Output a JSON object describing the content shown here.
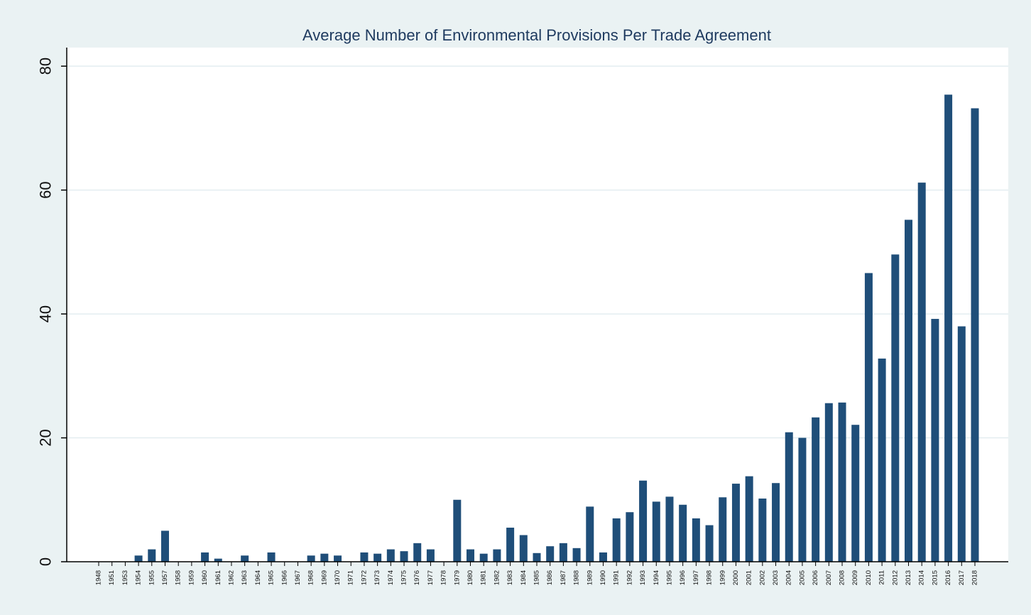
{
  "chart_data": {
    "type": "bar",
    "title": "Average Number of Environmental Provisions Per Trade Agreement",
    "xlabel": "",
    "ylabel": "",
    "ylim": [
      0,
      83
    ],
    "yticks": [
      0,
      20,
      40,
      60,
      80
    ],
    "grid": true,
    "legend": "none",
    "colors": {
      "bar": "#1f4e79",
      "background": "#eaf2f3",
      "plot": "#ffffff",
      "grid": "#e3edf0",
      "axis": "#000000"
    },
    "categories": [
      "1948",
      "1951",
      "1953",
      "1954",
      "1955",
      "1957",
      "1958",
      "1959",
      "1960",
      "1961",
      "1962",
      "1963",
      "1964",
      "1965",
      "1966",
      "1967",
      "1968",
      "1969",
      "1970",
      "1971",
      "1972",
      "1973",
      "1974",
      "1975",
      "1976",
      "1977",
      "1978",
      "1979",
      "1980",
      "1981",
      "1982",
      "1983",
      "1984",
      "1985",
      "1986",
      "1987",
      "1988",
      "1989",
      "1990",
      "1991",
      "1992",
      "1993",
      "1994",
      "1995",
      "1996",
      "1997",
      "1998",
      "1999",
      "2000",
      "2001",
      "2002",
      "2003",
      "2004",
      "2005",
      "2006",
      "2007",
      "2008",
      "2009",
      "2010",
      "2011",
      "2012",
      "2013",
      "2014",
      "2015",
      "2016",
      "2017",
      "2018"
    ],
    "values": [
      0,
      0,
      0,
      1,
      2,
      5,
      0,
      0,
      1.5,
      0.5,
      0,
      1,
      0,
      1.5,
      0,
      0,
      1,
      1.3,
      1,
      0,
      1.5,
      1.3,
      2,
      1.7,
      3,
      2,
      0,
      10,
      2,
      1.3,
      2,
      5.5,
      4.3,
      1.4,
      2.5,
      3,
      2.2,
      8.9,
      1.5,
      7,
      8,
      13.1,
      9.7,
      10.5,
      9.2,
      7,
      5.9,
      10.4,
      12.6,
      13.8,
      10.2,
      12.7,
      20.9,
      20,
      23.3,
      25.6,
      25.7,
      22.1,
      46.6,
      32.8,
      49.6,
      55.2,
      61.2,
      39.2,
      75.4,
      38,
      73.2
    ]
  }
}
